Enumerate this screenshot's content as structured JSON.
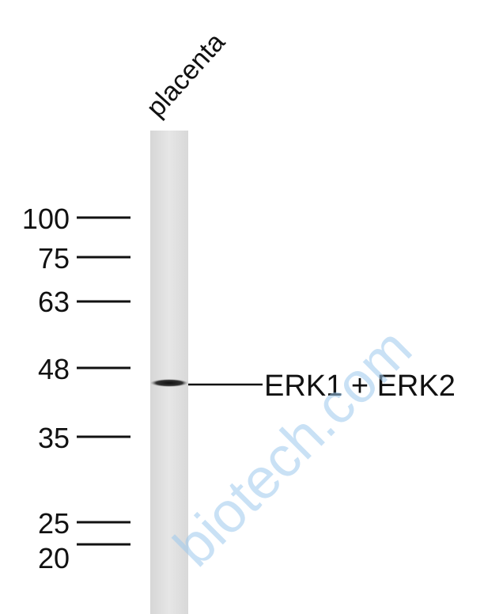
{
  "lane_label": "placenta",
  "markers": [
    "100",
    "75",
    "63",
    "48",
    "35",
    "25",
    "20"
  ],
  "band_label": "ERK1 + ERK2",
  "watermark": "biotech.com"
}
